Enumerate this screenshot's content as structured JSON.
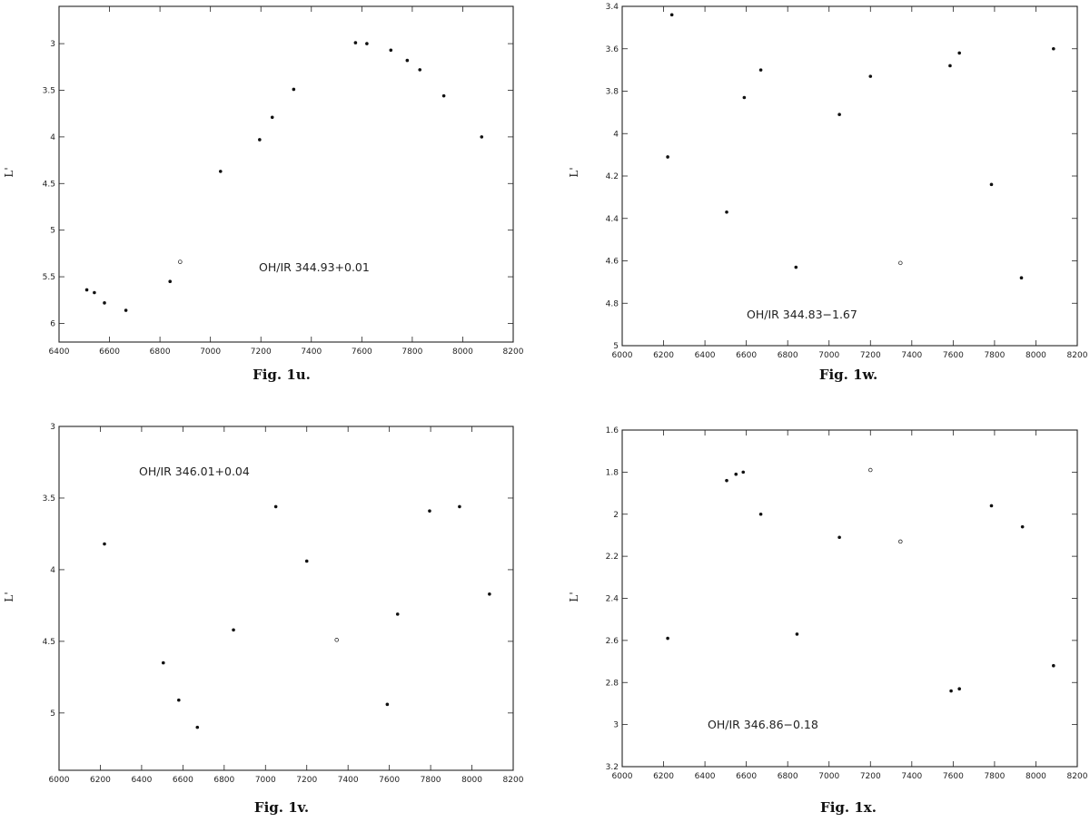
{
  "chart_data": [
    {
      "type": "scatter",
      "caption": "Fig. 1u.",
      "annotation": "OH/IR 344.93+0.01",
      "ylabel": "L'",
      "xlabel": "",
      "xlim": [
        6400,
        8200
      ],
      "ylim": [
        6.2,
        2.6
      ],
      "y_inverted": true,
      "xticks": [
        6400,
        6600,
        6800,
        7000,
        7200,
        7400,
        7600,
        7800,
        8000,
        8200
      ],
      "xtick_labels": [
        "6400",
        "6600",
        "6800",
        "7000",
        "7200",
        "7400",
        "7600",
        "7800",
        "8000",
        "8200"
      ],
      "yticks": [
        3,
        3.5,
        4,
        4.5,
        5,
        5.5,
        6
      ],
      "ytick_labels": [
        "3",
        "3.5",
        "4",
        "4.5",
        "5",
        "5.5",
        "6"
      ],
      "points": [
        {
          "x": 6510,
          "y": 5.64
        },
        {
          "x": 6540,
          "y": 5.67
        },
        {
          "x": 6580,
          "y": 5.78
        },
        {
          "x": 6665,
          "y": 5.86
        },
        {
          "x": 6840,
          "y": 5.55
        },
        {
          "x": 6880,
          "y": 5.34,
          "open": true
        },
        {
          "x": 7040,
          "y": 4.37
        },
        {
          "x": 7195,
          "y": 4.03
        },
        {
          "x": 7245,
          "y": 3.79
        },
        {
          "x": 7330,
          "y": 3.49
        },
        {
          "x": 7575,
          "y": 2.99
        },
        {
          "x": 7620,
          "y": 3.0
        },
        {
          "x": 7715,
          "y": 3.07
        },
        {
          "x": 7780,
          "y": 3.18
        },
        {
          "x": 7830,
          "y": 3.28
        },
        {
          "x": 7925,
          "y": 3.56
        },
        {
          "x": 8075,
          "y": 4.0
        }
      ]
    },
    {
      "type": "scatter",
      "caption": "Fig. 1w.",
      "annotation": "OH/IR 344.83−1.67",
      "ylabel": "L'",
      "xlabel": "",
      "xlim": [
        6000,
        8200
      ],
      "ylim": [
        5.0,
        3.4
      ],
      "y_inverted": true,
      "xticks": [
        6000,
        6200,
        6400,
        6600,
        6800,
        7000,
        7200,
        7400,
        7600,
        7800,
        8000,
        8200
      ],
      "xtick_labels": [
        "6000",
        "6200",
        "6400",
        "6600",
        "6800",
        "7000",
        "7200",
        "7400",
        "7600",
        "7800",
        "8000",
        "8200"
      ],
      "yticks": [
        3.4,
        3.6,
        3.8,
        4.0,
        4.2,
        4.4,
        4.6,
        4.8,
        5.0
      ],
      "ytick_labels": [
        "3.4",
        "3.6",
        "3.8",
        "4",
        "4.2",
        "4.4",
        "4.6",
        "4.8",
        "5"
      ],
      "points": [
        {
          "x": 6220,
          "y": 4.11
        },
        {
          "x": 6240,
          "y": 3.44
        },
        {
          "x": 6505,
          "y": 4.37
        },
        {
          "x": 6590,
          "y": 3.83
        },
        {
          "x": 6670,
          "y": 3.7
        },
        {
          "x": 6840,
          "y": 4.63
        },
        {
          "x": 7050,
          "y": 3.91
        },
        {
          "x": 7200,
          "y": 3.73
        },
        {
          "x": 7345,
          "y": 4.61,
          "open": true
        },
        {
          "x": 7585,
          "y": 3.68
        },
        {
          "x": 7630,
          "y": 3.62
        },
        {
          "x": 7785,
          "y": 4.24
        },
        {
          "x": 7930,
          "y": 4.68
        },
        {
          "x": 8085,
          "y": 3.6
        }
      ]
    },
    {
      "type": "scatter",
      "caption": "Fig. 1v.",
      "annotation": "OH/IR 346.01+0.04",
      "ylabel": "L'",
      "xlabel": "",
      "xlim": [
        6000,
        8200
      ],
      "ylim": [
        5.4,
        3.0
      ],
      "y_inverted": true,
      "xticks": [
        6000,
        6200,
        6400,
        6600,
        6800,
        7000,
        7200,
        7400,
        7600,
        7800,
        8000,
        8200
      ],
      "xtick_labels": [
        "6000",
        "6200",
        "6400",
        "6600",
        "6800",
        "7000",
        "7200",
        "7400",
        "7600",
        "7800",
        "8000",
        "8200"
      ],
      "yticks": [
        3.0,
        3.5,
        4.0,
        4.5,
        5.0
      ],
      "ytick_labels": [
        "3",
        "3.5",
        "4",
        "4.5",
        "5"
      ],
      "points": [
        {
          "x": 6220,
          "y": 3.82
        },
        {
          "x": 6505,
          "y": 4.65
        },
        {
          "x": 6580,
          "y": 4.91
        },
        {
          "x": 6670,
          "y": 5.1
        },
        {
          "x": 6845,
          "y": 4.42
        },
        {
          "x": 7050,
          "y": 3.56
        },
        {
          "x": 7200,
          "y": 3.94
        },
        {
          "x": 7345,
          "y": 4.49,
          "open": true
        },
        {
          "x": 7590,
          "y": 4.94
        },
        {
          "x": 7640,
          "y": 4.31
        },
        {
          "x": 7795,
          "y": 3.59
        },
        {
          "x": 7940,
          "y": 3.56
        },
        {
          "x": 8085,
          "y": 4.17
        }
      ]
    },
    {
      "type": "scatter",
      "caption": "Fig. 1x.",
      "annotation": "OH/IR 346.86−0.18",
      "ylabel": "L'",
      "xlabel": "",
      "xlim": [
        6000,
        8200
      ],
      "ylim": [
        3.2,
        1.6
      ],
      "y_inverted": true,
      "xticks": [
        6000,
        6200,
        6400,
        6600,
        6800,
        7000,
        7200,
        7400,
        7600,
        7800,
        8000,
        8200
      ],
      "xtick_labels": [
        "6000",
        "6200",
        "6400",
        "6600",
        "6800",
        "7000",
        "7200",
        "7400",
        "7600",
        "7800",
        "8000",
        "8200"
      ],
      "yticks": [
        1.6,
        1.8,
        2.0,
        2.2,
        2.4,
        2.6,
        2.8,
        3.0,
        3.2
      ],
      "ytick_labels": [
        "1.6",
        "1.8",
        "2",
        "2.2",
        "2.4",
        "2.6",
        "2.8",
        "3",
        "3.2"
      ],
      "points": [
        {
          "x": 6220,
          "y": 2.59
        },
        {
          "x": 6505,
          "y": 1.84
        },
        {
          "x": 6550,
          "y": 1.81
        },
        {
          "x": 6585,
          "y": 1.8
        },
        {
          "x": 6670,
          "y": 2.0
        },
        {
          "x": 6845,
          "y": 2.57
        },
        {
          "x": 7050,
          "y": 2.11
        },
        {
          "x": 7200,
          "y": 1.79,
          "open": true
        },
        {
          "x": 7345,
          "y": 2.13,
          "open": true
        },
        {
          "x": 7590,
          "y": 2.84
        },
        {
          "x": 7630,
          "y": 2.83
        },
        {
          "x": 7785,
          "y": 1.96
        },
        {
          "x": 7935,
          "y": 2.06
        },
        {
          "x": 8085,
          "y": 2.72
        }
      ]
    }
  ]
}
